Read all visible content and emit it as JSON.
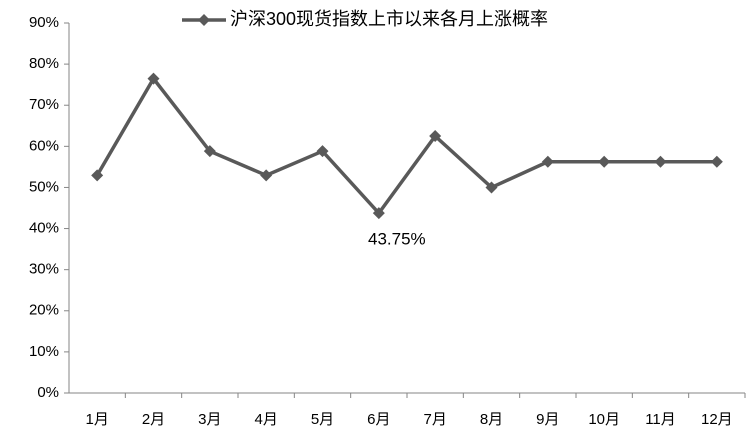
{
  "chart_data": {
    "type": "line",
    "categories": [
      "1月",
      "2月",
      "3月",
      "4月",
      "5月",
      "6月",
      "7月",
      "8月",
      "9月",
      "10月",
      "11月",
      "12月"
    ],
    "series": [
      {
        "name": "沪深300现货指数上市以来各月上涨概率",
        "color": "#595959",
        "values": [
          52.94,
          76.47,
          58.82,
          52.94,
          58.82,
          43.75,
          62.5,
          50,
          56.25,
          56.25,
          56.25,
          56.25
        ],
        "value_labels": [
          null,
          null,
          null,
          null,
          null,
          "43.75%",
          null,
          null,
          null,
          null,
          null,
          null
        ]
      }
    ],
    "ylim": [
      0,
      90
    ],
    "yticks": [
      {
        "value": 0,
        "label": "0%"
      },
      {
        "value": 10,
        "label": "10%"
      },
      {
        "value": 20,
        "label": "20%"
      },
      {
        "value": 30,
        "label": "30%"
      },
      {
        "value": 40,
        "label": "40%"
      },
      {
        "value": 50,
        "label": "50%"
      },
      {
        "value": 60,
        "label": "60%"
      },
      {
        "value": 70,
        "label": "70%"
      },
      {
        "value": 80,
        "label": "80%"
      },
      {
        "value": 90,
        "label": "90%"
      }
    ],
    "legend": "top"
  }
}
